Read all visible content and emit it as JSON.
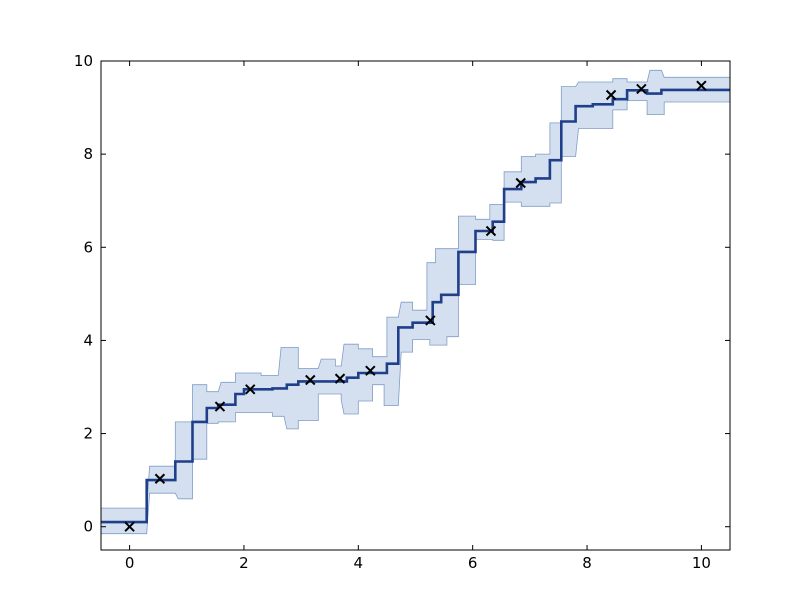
{
  "chart_data": {
    "type": "line",
    "title": "",
    "xlabel": "",
    "ylabel": "",
    "xlim": [
      -0.5,
      10.5
    ],
    "ylim": [
      -0.5,
      10
    ],
    "xticks": [
      0,
      2,
      4,
      6,
      8,
      10
    ],
    "yticks": [
      0,
      2,
      4,
      6,
      8,
      10
    ],
    "xtick_labels": [
      "0",
      "2",
      "4",
      "6",
      "8",
      "10"
    ],
    "ytick_labels": [
      "0",
      "2",
      "4",
      "6",
      "8",
      "10"
    ],
    "grid": false,
    "legend": "none",
    "colors": {
      "line": "#1f3f8a",
      "band_fill": "#d4e0ef",
      "band_edge": "#7f9cc6",
      "markers": "#000000"
    },
    "mean_steps": [
      [
        -0.5,
        0.1
      ],
      [
        0.3,
        0.1
      ],
      [
        0.3,
        1.0
      ],
      [
        0.8,
        1.0
      ],
      [
        0.8,
        1.4
      ],
      [
        1.1,
        1.4
      ],
      [
        1.1,
        2.25
      ],
      [
        1.35,
        2.25
      ],
      [
        1.35,
        2.55
      ],
      [
        1.55,
        2.55
      ],
      [
        1.55,
        2.62
      ],
      [
        1.85,
        2.62
      ],
      [
        1.85,
        2.85
      ],
      [
        2.0,
        2.85
      ],
      [
        2.0,
        2.95
      ],
      [
        2.5,
        2.95
      ],
      [
        2.5,
        2.97
      ],
      [
        2.75,
        2.97
      ],
      [
        2.75,
        3.05
      ],
      [
        2.95,
        3.05
      ],
      [
        2.95,
        3.12
      ],
      [
        3.8,
        3.12
      ],
      [
        3.8,
        3.2
      ],
      [
        4.0,
        3.2
      ],
      [
        4.0,
        3.3
      ],
      [
        4.5,
        3.3
      ],
      [
        4.5,
        3.5
      ],
      [
        4.7,
        3.5
      ],
      [
        4.7,
        4.28
      ],
      [
        4.95,
        4.28
      ],
      [
        4.95,
        4.38
      ],
      [
        5.3,
        4.38
      ],
      [
        5.3,
        4.82
      ],
      [
        5.45,
        4.82
      ],
      [
        5.45,
        4.98
      ],
      [
        5.75,
        4.98
      ],
      [
        5.75,
        5.9
      ],
      [
        6.05,
        5.9
      ],
      [
        6.05,
        6.35
      ],
      [
        6.35,
        6.35
      ],
      [
        6.35,
        6.55
      ],
      [
        6.55,
        6.55
      ],
      [
        6.55,
        7.25
      ],
      [
        6.85,
        7.25
      ],
      [
        6.85,
        7.4
      ],
      [
        7.1,
        7.4
      ],
      [
        7.1,
        7.48
      ],
      [
        7.35,
        7.48
      ],
      [
        7.35,
        7.87
      ],
      [
        7.55,
        7.87
      ],
      [
        7.55,
        8.7
      ],
      [
        7.8,
        8.7
      ],
      [
        7.8,
        9.03
      ],
      [
        8.1,
        9.03
      ],
      [
        8.1,
        9.07
      ],
      [
        8.45,
        9.07
      ],
      [
        8.45,
        9.18
      ],
      [
        8.7,
        9.18
      ],
      [
        8.7,
        9.37
      ],
      [
        9.05,
        9.37
      ],
      [
        9.05,
        9.3
      ],
      [
        9.3,
        9.3
      ],
      [
        9.3,
        9.38
      ],
      [
        10.5,
        9.38
      ]
    ],
    "upper_bound": [
      [
        -0.5,
        0.4
      ],
      [
        0.3,
        0.4
      ],
      [
        0.35,
        1.3
      ],
      [
        0.8,
        1.3
      ],
      [
        0.8,
        2.25
      ],
      [
        1.1,
        2.25
      ],
      [
        1.1,
        3.05
      ],
      [
        1.35,
        3.05
      ],
      [
        1.35,
        2.9
      ],
      [
        1.55,
        2.9
      ],
      [
        1.6,
        3.1
      ],
      [
        1.85,
        3.1
      ],
      [
        1.85,
        3.3
      ],
      [
        2.3,
        3.3
      ],
      [
        2.3,
        3.25
      ],
      [
        2.6,
        3.25
      ],
      [
        2.65,
        3.85
      ],
      [
        2.95,
        3.85
      ],
      [
        2.95,
        3.4
      ],
      [
        3.3,
        3.4
      ],
      [
        3.35,
        3.6
      ],
      [
        3.6,
        3.6
      ],
      [
        3.6,
        3.45
      ],
      [
        3.7,
        3.45
      ],
      [
        3.75,
        3.92
      ],
      [
        4.0,
        3.92
      ],
      [
        4.0,
        3.82
      ],
      [
        4.25,
        3.82
      ],
      [
        4.25,
        3.65
      ],
      [
        4.5,
        3.65
      ],
      [
        4.5,
        4.5
      ],
      [
        4.7,
        4.5
      ],
      [
        4.75,
        4.82
      ],
      [
        4.95,
        4.82
      ],
      [
        4.95,
        4.65
      ],
      [
        5.2,
        4.65
      ],
      [
        5.2,
        5.67
      ],
      [
        5.35,
        5.67
      ],
      [
        5.35,
        5.97
      ],
      [
        5.75,
        5.97
      ],
      [
        5.75,
        6.67
      ],
      [
        6.05,
        6.67
      ],
      [
        6.05,
        6.6
      ],
      [
        6.3,
        6.6
      ],
      [
        6.3,
        6.92
      ],
      [
        6.55,
        6.92
      ],
      [
        6.55,
        7.62
      ],
      [
        6.85,
        7.62
      ],
      [
        6.85,
        7.95
      ],
      [
        7.1,
        7.95
      ],
      [
        7.1,
        8.0
      ],
      [
        7.35,
        8.0
      ],
      [
        7.35,
        8.67
      ],
      [
        7.55,
        8.67
      ],
      [
        7.55,
        9.45
      ],
      [
        7.8,
        9.45
      ],
      [
        7.85,
        9.55
      ],
      [
        8.45,
        9.55
      ],
      [
        8.45,
        9.62
      ],
      [
        8.7,
        9.62
      ],
      [
        8.7,
        9.55
      ],
      [
        9.05,
        9.55
      ],
      [
        9.1,
        9.8
      ],
      [
        9.3,
        9.8
      ],
      [
        9.35,
        9.65
      ],
      [
        10.5,
        9.65
      ]
    ],
    "lower_bound": [
      [
        -0.5,
        -0.15
      ],
      [
        0.3,
        -0.15
      ],
      [
        0.35,
        0.72
      ],
      [
        0.8,
        0.72
      ],
      [
        0.85,
        0.6
      ],
      [
        1.1,
        0.6
      ],
      [
        1.1,
        1.45
      ],
      [
        1.35,
        1.45
      ],
      [
        1.35,
        2.22
      ],
      [
        1.55,
        2.22
      ],
      [
        1.55,
        2.25
      ],
      [
        1.85,
        2.25
      ],
      [
        1.85,
        2.45
      ],
      [
        2.5,
        2.45
      ],
      [
        2.5,
        2.37
      ],
      [
        2.7,
        2.37
      ],
      [
        2.75,
        2.1
      ],
      [
        2.95,
        2.1
      ],
      [
        2.95,
        2.28
      ],
      [
        3.3,
        2.28
      ],
      [
        3.3,
        2.85
      ],
      [
        3.7,
        2.85
      ],
      [
        3.7,
        2.72
      ],
      [
        3.75,
        2.42
      ],
      [
        4.0,
        2.42
      ],
      [
        4.0,
        2.7
      ],
      [
        4.25,
        2.7
      ],
      [
        4.25,
        3.05
      ],
      [
        4.45,
        3.05
      ],
      [
        4.45,
        2.6
      ],
      [
        4.7,
        2.6
      ],
      [
        4.75,
        3.75
      ],
      [
        4.95,
        3.75
      ],
      [
        4.95,
        4.02
      ],
      [
        5.25,
        4.02
      ],
      [
        5.25,
        3.9
      ],
      [
        5.55,
        3.9
      ],
      [
        5.55,
        4.08
      ],
      [
        5.75,
        4.08
      ],
      [
        5.75,
        5.2
      ],
      [
        6.05,
        5.2
      ],
      [
        6.05,
        6.17
      ],
      [
        6.35,
        6.17
      ],
      [
        6.35,
        6.15
      ],
      [
        6.55,
        6.15
      ],
      [
        6.55,
        6.97
      ],
      [
        6.85,
        6.97
      ],
      [
        6.85,
        6.88
      ],
      [
        7.35,
        6.88
      ],
      [
        7.35,
        6.95
      ],
      [
        7.55,
        6.95
      ],
      [
        7.55,
        7.95
      ],
      [
        7.8,
        7.95
      ],
      [
        7.85,
        8.55
      ],
      [
        8.45,
        8.55
      ],
      [
        8.45,
        8.95
      ],
      [
        8.7,
        8.95
      ],
      [
        8.7,
        9.15
      ],
      [
        9.05,
        9.15
      ],
      [
        9.05,
        8.85
      ],
      [
        9.35,
        8.85
      ],
      [
        9.35,
        9.12
      ],
      [
        10.5,
        9.12
      ]
    ],
    "observations": {
      "x": [
        0.0,
        0.53,
        1.58,
        2.11,
        3.16,
        3.68,
        4.21,
        5.26,
        6.32,
        6.84,
        8.42,
        8.95,
        10.0
      ],
      "y": [
        0.0,
        1.03,
        2.58,
        2.95,
        3.15,
        3.18,
        3.35,
        4.43,
        6.35,
        7.38,
        9.27,
        9.4,
        9.47
      ]
    }
  }
}
